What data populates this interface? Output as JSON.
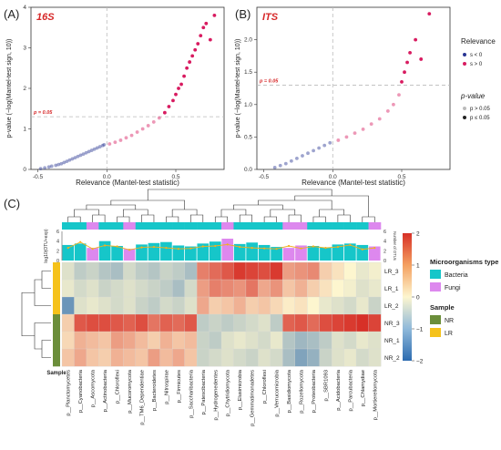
{
  "panels": {
    "A": {
      "label": "(A)",
      "tag": "16S"
    },
    "B": {
      "label": "(B)",
      "tag": "ITS"
    },
    "C": {
      "label": "(C)"
    }
  },
  "scatter": {
    "xlabel": "Relevance (Mantel-test statistic)",
    "ylabel": "p-value (−log(Mantel-test sign, 10))",
    "threshold_label": "p = 0.05",
    "legend_relevance_title": "Relevance",
    "legend_relevance_items": [
      "s < 0",
      "s > 0"
    ],
    "legend_p_title": "p-value",
    "legend_p_items": [
      "p > 0.05",
      "p ≤ 0.05"
    ]
  },
  "heatmap": {
    "bar_axis_label": "log10(OTU+exp)",
    "right_axis_label": "Number of OTUs",
    "sample_axis_label": "Sample",
    "legend_micro_title": "Microorganisms type",
    "legend_micro_items": [
      "Bacteria",
      "Fungi"
    ],
    "legend_sample_title": "Sample",
    "legend_sample_items": [
      "NR",
      "LR"
    ],
    "columns": [
      "p__Planctomycetes",
      "p__Cyanobacteria",
      "p__Ascomycota",
      "p__Actinobacteria",
      "p__Chloroflexi",
      "p__Mucoromycota",
      "p__TM6_Dependentiae",
      "p__Bacteroidetes",
      "p__Nitrospirae",
      "p__Firmicutes",
      "p__Saccharibacteria",
      "p__Patescibacteria",
      "p__Hydrogenedentes",
      "p__Chytridiomycota",
      "p__Elusimicrobia",
      "p__Gemmatimonadetes",
      "p__Chloroflexi",
      "p__Verrucomicrobia",
      "p__Basidiomycota",
      "p__Rozellomycota",
      "p__Proteobacteria",
      "p__SBR1093",
      "p__Acidobacteria",
      "p__Parcubacteria",
      "p__Chlamydiae",
      "p__Mortierellomycota"
    ],
    "rows": [
      "LR_3",
      "LR_1",
      "LR_2",
      "NR_3",
      "NR_1",
      "NR_2"
    ],
    "row_sample": [
      "LR",
      "LR",
      "LR",
      "NR",
      "NR",
      "NR"
    ],
    "column_type": [
      "Bacteria",
      "Bacteria",
      "Fungi",
      "Bacteria",
      "Bacteria",
      "Fungi",
      "Bacteria",
      "Bacteria",
      "Bacteria",
      "Bacteria",
      "Bacteria",
      "Bacteria",
      "Bacteria",
      "Fungi",
      "Bacteria",
      "Bacteria",
      "Bacteria",
      "Bacteria",
      "Fungi",
      "Fungi",
      "Bacteria",
      "Bacteria",
      "Bacteria",
      "Bacteria",
      "Bacteria",
      "Fungi"
    ],
    "colorscale_ticks": [
      "2",
      "1",
      "0",
      "−1",
      "−2"
    ],
    "bar_y_ticks": [
      "6",
      "4",
      "2",
      "0"
    ],
    "right_y_ticks": [
      "6",
      "4",
      "2",
      "0"
    ],
    "colors": {
      "bacteria": "#16c6c9",
      "fungi": "#dd88ee",
      "NR": "#6b8e3a",
      "LR": "#f5c21b",
      "high": "#d73027",
      "mid": "#fdf6cf",
      "low": "#2c6bb0"
    }
  },
  "chart_data": [
    {
      "type": "scatter",
      "title": "16S",
      "xlabel": "Relevance (Mantel-test statistic)",
      "ylabel": "p-value (−log(Mantel-test sign, 10))",
      "xlim": [
        -0.55,
        0.85
      ],
      "ylim": [
        0,
        4.0
      ],
      "xticks": [
        -0.5,
        0.0,
        0.5
      ],
      "yticks": [
        0,
        1,
        2,
        3,
        4
      ],
      "threshold_y": 1.3,
      "series": [
        {
          "name": "s < 0",
          "color": "#283593",
          "x": [
            -0.48,
            -0.45,
            -0.42,
            -0.4,
            -0.37,
            -0.35,
            -0.33,
            -0.31,
            -0.29,
            -0.27,
            -0.25,
            -0.23,
            -0.21,
            -0.19,
            -0.17,
            -0.15,
            -0.13,
            -0.11,
            -0.09,
            -0.07,
            -0.05,
            -0.03,
            -0.02
          ],
          "y": [
            0.02,
            0.04,
            0.06,
            0.08,
            0.1,
            0.12,
            0.14,
            0.17,
            0.2,
            0.23,
            0.26,
            0.29,
            0.32,
            0.35,
            0.38,
            0.41,
            0.44,
            0.47,
            0.5,
            0.53,
            0.56,
            0.59,
            0.61
          ]
        },
        {
          "name": "s > 0",
          "color": "#d81b60",
          "x": [
            0.02,
            0.06,
            0.1,
            0.14,
            0.18,
            0.22,
            0.26,
            0.3,
            0.34,
            0.38,
            0.42,
            0.45,
            0.48,
            0.5,
            0.52,
            0.54,
            0.56,
            0.58,
            0.6,
            0.62,
            0.64,
            0.66,
            0.68,
            0.7,
            0.72,
            0.75,
            0.78
          ],
          "y": [
            0.63,
            0.67,
            0.72,
            0.78,
            0.84,
            0.92,
            1.0,
            1.08,
            1.17,
            1.27,
            1.4,
            1.55,
            1.7,
            1.85,
            2.0,
            2.1,
            2.3,
            2.5,
            2.65,
            2.8,
            2.95,
            3.1,
            3.3,
            3.5,
            3.6,
            3.2,
            3.8
          ]
        }
      ]
    },
    {
      "type": "scatter",
      "title": "ITS",
      "xlabel": "Relevance (Mantel-test statistic)",
      "ylabel": "p-value (−log(Mantel-test sign, 10))",
      "xlim": [
        -0.55,
        0.85
      ],
      "ylim": [
        0,
        2.5
      ],
      "xticks": [
        -0.5,
        0.0,
        0.5
      ],
      "yticks": [
        0,
        0.5,
        1.0,
        1.5,
        2.0
      ],
      "threshold_y": 1.3,
      "series": [
        {
          "name": "s < 0",
          "color": "#283593",
          "x": [
            -0.42,
            -0.38,
            -0.34,
            -0.3,
            -0.26,
            -0.22,
            -0.18,
            -0.14,
            -0.1,
            -0.06,
            -0.02
          ],
          "y": [
            0.03,
            0.06,
            0.09,
            0.13,
            0.17,
            0.21,
            0.25,
            0.29,
            0.33,
            0.37,
            0.41
          ]
        },
        {
          "name": "s > 0",
          "color": "#d81b60",
          "x": [
            0.04,
            0.1,
            0.16,
            0.22,
            0.28,
            0.34,
            0.4,
            0.44,
            0.48,
            0.5,
            0.52,
            0.54,
            0.56,
            0.6,
            0.64,
            0.7
          ],
          "y": [
            0.45,
            0.5,
            0.56,
            0.62,
            0.7,
            0.78,
            0.9,
            1.0,
            1.15,
            1.35,
            1.5,
            1.65,
            1.8,
            2.0,
            1.7,
            2.4
          ]
        }
      ]
    },
    {
      "type": "heatmap",
      "rows": [
        "LR_3",
        "LR_1",
        "LR_2",
        "NR_3",
        "NR_1",
        "NR_2"
      ],
      "columns": [
        "p__Planctomycetes",
        "p__Cyanobacteria",
        "p__Ascomycota",
        "p__Actinobacteria",
        "p__Chloroflexi",
        "p__Mucoromycota",
        "p__TM6_Dependentiae",
        "p__Bacteroidetes",
        "p__Nitrospirae",
        "p__Firmicutes",
        "p__Saccharibacteria",
        "p__Patescibacteria",
        "p__Hydrogenedentes",
        "p__Chytridiomycota",
        "p__Elusimicrobia",
        "p__Gemmatimonadetes",
        "p__Chloroflexi",
        "p__Verrucomicrobia",
        "p__Basidiomycota",
        "p__Rozellomycota",
        "p__Proteobacteria",
        "p__SBR1093",
        "p__Acidobacteria",
        "p__Parcubacteria",
        "p__Chlamydiae",
        "p__Mortierellomycota"
      ],
      "zlim": [
        -2,
        2
      ],
      "values": [
        [
          -0.3,
          -0.6,
          -0.5,
          -0.7,
          -0.8,
          -0.4,
          -0.6,
          -0.7,
          -0.5,
          -0.6,
          -0.8,
          1.2,
          1.4,
          1.6,
          1.9,
          1.8,
          1.7,
          1.9,
          0.9,
          1.0,
          1.1,
          0.4,
          0.2,
          0.0,
          -0.2,
          -0.1
        ],
        [
          -0.2,
          -0.4,
          -0.3,
          -0.5,
          -0.4,
          -0.3,
          -0.4,
          -0.5,
          -0.6,
          -0.8,
          -0.4,
          0.9,
          1.2,
          1.1,
          1.0,
          1.3,
          0.8,
          1.0,
          0.5,
          0.7,
          0.4,
          0.2,
          0.0,
          -0.1,
          -0.3,
          -0.2
        ],
        [
          -1.4,
          -0.3,
          -0.2,
          -0.3,
          -0.4,
          -0.3,
          -0.5,
          -0.6,
          -0.4,
          -0.5,
          -0.3,
          0.8,
          0.4,
          0.5,
          0.7,
          0.4,
          0.5,
          0.3,
          0.1,
          0.2,
          0.0,
          -0.2,
          -0.3,
          -0.4,
          -0.2,
          -0.5
        ],
        [
          0.4,
          1.6,
          1.7,
          1.7,
          1.6,
          1.5,
          1.7,
          1.3,
          1.5,
          1.4,
          1.6,
          -0.6,
          -0.5,
          -0.6,
          -0.5,
          -0.4,
          -0.3,
          -0.6,
          1.5,
          1.6,
          1.4,
          1.7,
          1.8,
          1.9,
          2.0,
          1.8
        ],
        [
          0.3,
          0.7,
          0.6,
          0.5,
          0.9,
          0.8,
          0.6,
          0.4,
          0.7,
          0.5,
          0.6,
          -0.5,
          -0.6,
          -0.3,
          -0.2,
          -0.3,
          -0.4,
          -0.2,
          -0.7,
          -0.9,
          -0.8,
          -0.6,
          -0.3,
          -0.4,
          -0.2,
          -0.3
        ],
        [
          0.5,
          0.8,
          0.5,
          0.4,
          0.7,
          0.6,
          0.5,
          0.9,
          0.6,
          0.8,
          0.5,
          -0.5,
          -0.4,
          -0.3,
          -0.4,
          -0.5,
          -0.3,
          -0.4,
          -0.8,
          -1.2,
          -1.0,
          -0.5,
          -0.3,
          -0.2,
          -0.4,
          -0.3
        ]
      ],
      "log_otu": [
        3.2,
        3.5,
        2.6,
        4.0,
        3.0,
        2.4,
        3.3,
        3.6,
        3.8,
        3.1,
        2.9,
        3.5,
        3.9,
        4.5,
        3.4,
        3.7,
        3.2,
        2.8,
        2.6,
        3.1,
        3.0,
        2.7,
        3.3,
        3.5,
        3.2,
        2.9
      ],
      "number_of_otus": [
        2.6,
        3.8,
        2.4,
        3.1,
        2.9,
        2.2,
        2.7,
        2.8,
        2.6,
        2.4,
        2.5,
        2.9,
        3.0,
        3.3,
        2.8,
        2.6,
        2.5,
        2.4,
        3.0,
        2.5,
        2.9,
        2.6,
        2.8,
        3.2,
        2.3,
        2.6
      ]
    }
  ]
}
